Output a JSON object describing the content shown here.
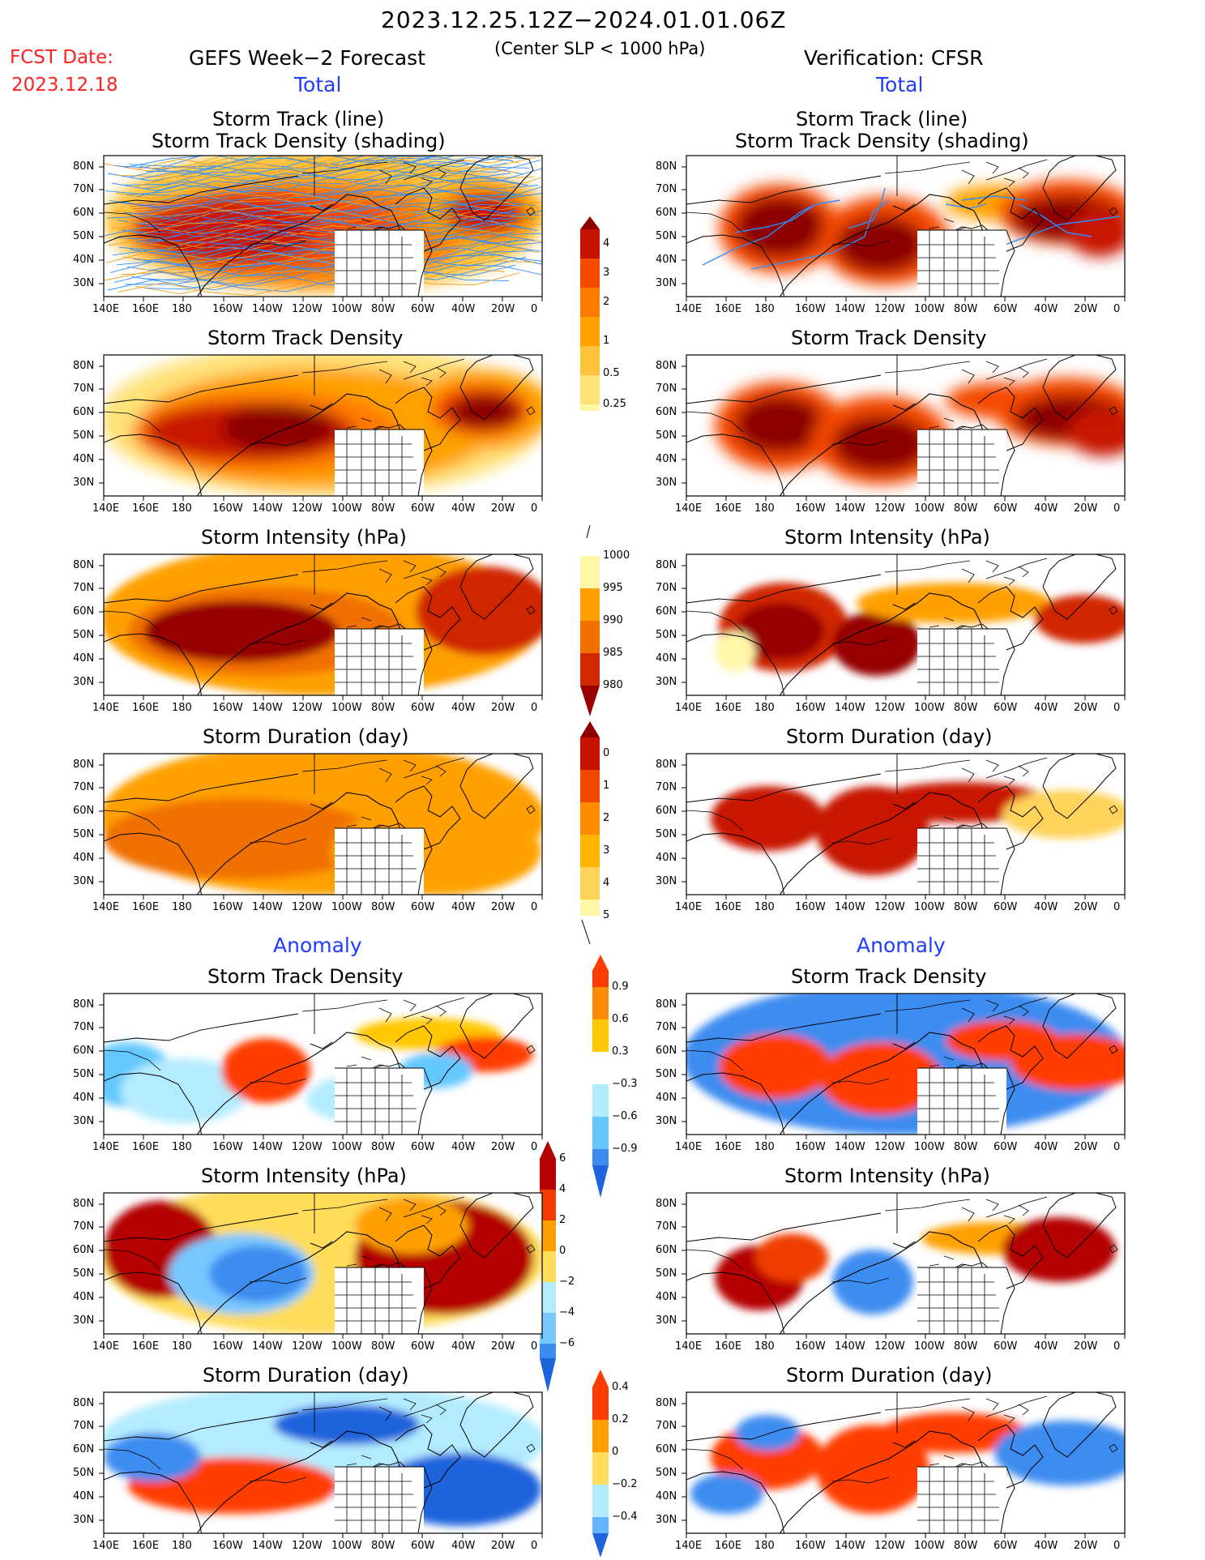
{
  "header": {
    "date_range": "2023.12.25.12Z−2024.01.01.06Z",
    "fcst_label": "FCST Date:",
    "fcst_date": "2023.12.18",
    "left_title": "GEFS Week−2 Forecast",
    "subtitle": "(Center SLP < 1000 hPa)",
    "right_title": "Verification: CFSR",
    "left_total": "Total",
    "right_total": "Total",
    "left_anomaly": "Anomaly",
    "right_anomaly": "Anomaly"
  },
  "panel_titles": {
    "track_line": "Storm Track (line)",
    "track_shading": "Storm Track Density (shading)",
    "density": "Storm Track Density",
    "intensity": "Storm Intensity (hPa)",
    "duration": "Storm Duration (day)"
  },
  "axes": {
    "lat_labels": [
      "80N",
      "70N",
      "60N",
      "50N",
      "40N",
      "30N"
    ],
    "lon_labels": [
      "140E",
      "160E",
      "180",
      "160W",
      "140W",
      "120W",
      "100W",
      "80W",
      "60W",
      "40W",
      "20W",
      "0"
    ]
  },
  "colorbars": {
    "density_total": {
      "levels": [
        "0.25",
        "0.5",
        "1",
        "2",
        "3",
        "4"
      ],
      "colors": [
        "#fff7a8",
        "#ffe27a",
        "#ffc23c",
        "#ffa200",
        "#ff7a00",
        "#f44a00",
        "#c81200",
        "#8c0000"
      ]
    },
    "intensity_total": {
      "levels": [
        "1000",
        "995",
        "990",
        "985",
        "980"
      ],
      "colors": [
        "#fff7a8",
        "#ffa000",
        "#f07000",
        "#d02800",
        "#960000"
      ]
    },
    "duration_total": {
      "levels": [
        "0",
        "1",
        "2",
        "3",
        "4",
        "5"
      ],
      "colors": [
        "#fff7a8",
        "#ffd25a",
        "#ffb400",
        "#ff8c00",
        "#f04800",
        "#c81200",
        "#8c0000"
      ]
    },
    "density_anom": {
      "levels": [
        "0.9",
        "0.6",
        "0.3",
        "−0.3",
        "−0.6",
        "−0.9"
      ],
      "colors": [
        "#ff3c00",
        "#ff8c00",
        "#ffc800",
        "#ffec7a",
        "#ffffff",
        "#b4ecff",
        "#64c8ff",
        "#3c8cf0",
        "#1e64dc"
      ]
    },
    "intensity_anom": {
      "levels": [
        "6",
        "4",
        "2",
        "0",
        "−2",
        "−4",
        "−6"
      ],
      "colors": [
        "#b40000",
        "#f03c00",
        "#ffa000",
        "#ffdc5a",
        "#b4ecff",
        "#78c8ff",
        "#3c8cf0",
        "#1e64dc"
      ]
    },
    "duration_anom": {
      "levels": [
        "0.4",
        "0.2",
        "0",
        "−0.2",
        "−0.4"
      ],
      "colors": [
        "#ff3c00",
        "#ffa000",
        "#ffdc5a",
        "#b4ecff",
        "#64b4ff",
        "#1e64dc"
      ]
    }
  },
  "colors": {
    "accent_red": "#ff2020",
    "accent_blue": "#1f3cff",
    "track_blue": "#2f8fff",
    "track_orange": "#f0a020"
  }
}
